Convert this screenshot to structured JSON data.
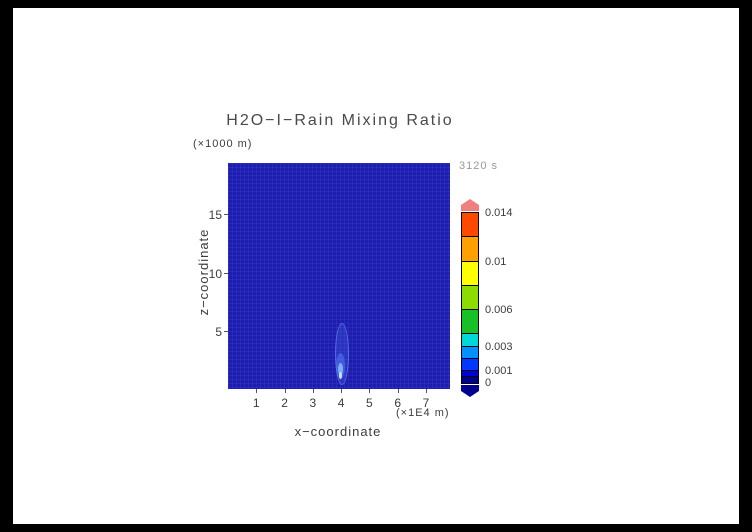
{
  "title": "H2O−I−Rain Mixing Ratio",
  "timestamp": "3120 s",
  "axes": {
    "x": {
      "label": "x−coordinate",
      "units_label": "(×1E4 m)"
    },
    "y": {
      "label": "z−coordinate",
      "units_label": "(×1000 m)"
    }
  },
  "colors": {
    "page_border": "#000000",
    "canvas": "#ffffff",
    "field_base": "#1d1db2",
    "axis_text": "#3c3c3c",
    "timestamp_text": "#9a9a9a"
  },
  "chart_data": {
    "type": "heatmap",
    "title": "H2O−I−Rain Mixing Ratio",
    "time_annotation": "3120 s",
    "xlabel": "x−coordinate",
    "x_units": "×1E4 m",
    "ylabel": "z−coordinate",
    "y_units": "×1000 m",
    "xlim": [
      0,
      7.85
    ],
    "ylim": [
      0,
      19.4
    ],
    "x_ticks": [
      1,
      2,
      3,
      4,
      5,
      6,
      7
    ],
    "y_ticks": [
      5,
      10,
      15
    ],
    "grid": false,
    "legend_position": "right-colorbar",
    "background_value": 0,
    "features": [
      {
        "name": "rain-shaft",
        "x_center": 4.0,
        "x_halfwidth": 0.25,
        "z_range": [
          0.5,
          5.5
        ],
        "peak_value": 0.002,
        "description": "faint narrow vertical plume of nonzero rain mixing ratio near x=4, strongest below z=2; rest of the field is 0 (uniform dark blue)"
      }
    ],
    "colorbar": {
      "min": 0,
      "max": 0.014,
      "orientation": "vertical",
      "labels": [
        {
          "value": 0.014,
          "text": "0.014"
        },
        {
          "value": 0.01,
          "text": "0.01"
        },
        {
          "value": 0.006,
          "text": "0.006"
        },
        {
          "value": 0.003,
          "text": "0.003"
        },
        {
          "value": 0.001,
          "text": "0.001"
        },
        {
          "value": 0,
          "text": "0"
        }
      ],
      "bands": [
        {
          "from": 0,
          "to": 0.0005,
          "color": "#000090"
        },
        {
          "from": 0.0005,
          "to": 0.001,
          "color": "#0000d8"
        },
        {
          "from": 0.001,
          "to": 0.002,
          "color": "#0038ff"
        },
        {
          "from": 0.002,
          "to": 0.003,
          "color": "#0090ff"
        },
        {
          "from": 0.003,
          "to": 0.004,
          "color": "#00d8d8"
        },
        {
          "from": 0.004,
          "to": 0.006,
          "color": "#18c028"
        },
        {
          "from": 0.006,
          "to": 0.008,
          "color": "#8cdc00"
        },
        {
          "from": 0.008,
          "to": 0.01,
          "color": "#ffff00"
        },
        {
          "from": 0.01,
          "to": 0.012,
          "color": "#ffa000"
        },
        {
          "from": 0.012,
          "to": 0.014,
          "color": "#ff4800"
        }
      ],
      "over_arrow_color": "#f08080",
      "under_arrow_color": "#000090"
    }
  }
}
